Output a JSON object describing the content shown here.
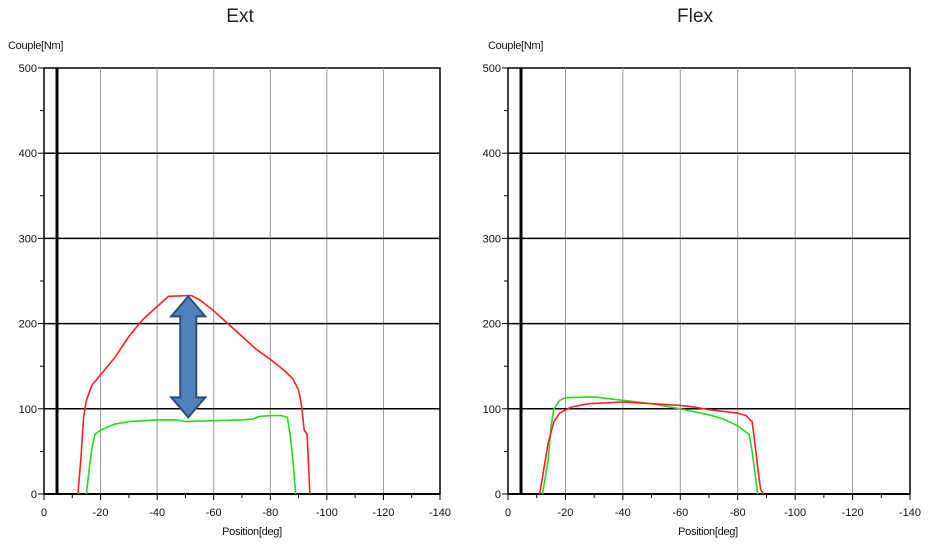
{
  "chart_data": [
    {
      "type": "line",
      "title": "Ext",
      "ylabel": "Couple[Nm]",
      "xlabel": "Position[deg]",
      "xlim": [
        0,
        -140
      ],
      "ylim": [
        0,
        500
      ],
      "x_ticks": [
        0,
        -20,
        -40,
        -60,
        -80,
        -100,
        -120,
        -140
      ],
      "y_ticks": [
        0,
        100,
        200,
        300,
        400,
        500
      ],
      "grid": true,
      "colors": {
        "red": "#ff2020",
        "green": "#22dd22",
        "arrow": "#4f81bd"
      },
      "annotation": {
        "type": "double-arrow",
        "x": -51,
        "y_from": 90,
        "y_to": 232
      },
      "series": [
        {
          "color": "red",
          "points": [
            [
              -12,
              0
            ],
            [
              -13,
              40
            ],
            [
              -14,
              90
            ],
            [
              -15,
              110
            ],
            [
              -17,
              128
            ],
            [
              -20,
              140
            ],
            [
              -25,
              160
            ],
            [
              -30,
              185
            ],
            [
              -35,
              205
            ],
            [
              -40,
              220
            ],
            [
              -44,
              232
            ],
            [
              -52,
              233
            ],
            [
              -55,
              228
            ],
            [
              -60,
              215
            ],
            [
              -65,
              200
            ],
            [
              -70,
              185
            ],
            [
              -75,
              170
            ],
            [
              -80,
              158
            ],
            [
              -85,
              145
            ],
            [
              -88,
              135
            ],
            [
              -90,
              122
            ],
            [
              -91,
              105
            ],
            [
              -92,
              75
            ],
            [
              -93,
              70
            ],
            [
              -94,
              0
            ]
          ]
        },
        {
          "color": "green",
          "points": [
            [
              -15,
              0
            ],
            [
              -16,
              30
            ],
            [
              -17,
              55
            ],
            [
              -18,
              70
            ],
            [
              -20,
              75
            ],
            [
              -25,
              82
            ],
            [
              -30,
              85
            ],
            [
              -40,
              87
            ],
            [
              -47,
              87
            ],
            [
              -50,
              85
            ],
            [
              -60,
              86
            ],
            [
              -70,
              87
            ],
            [
              -74,
              88
            ],
            [
              -76,
              91
            ],
            [
              -80,
              92
            ],
            [
              -84,
              92
            ],
            [
              -86,
              90
            ],
            [
              -87,
              70
            ],
            [
              -88,
              40
            ],
            [
              -89,
              0
            ]
          ]
        }
      ]
    },
    {
      "type": "line",
      "title": "Flex",
      "ylabel": "Couple[Nm]",
      "xlabel": "Position[deg]",
      "xlim": [
        0,
        -140
      ],
      "ylim": [
        0,
        500
      ],
      "x_ticks": [
        0,
        -20,
        -40,
        -60,
        -80,
        -100,
        -120,
        -140
      ],
      "y_ticks": [
        0,
        100,
        200,
        300,
        400,
        500
      ],
      "grid": true,
      "colors": {
        "red": "#ff2020",
        "green": "#22dd22"
      },
      "series": [
        {
          "color": "green",
          "points": [
            [
              -12,
              0
            ],
            [
              -14,
              40
            ],
            [
              -15,
              80
            ],
            [
              -16,
              100
            ],
            [
              -18,
              110
            ],
            [
              -20,
              113
            ],
            [
              -30,
              114
            ],
            [
              -40,
              110
            ],
            [
              -50,
              106
            ],
            [
              -60,
              100
            ],
            [
              -70,
              93
            ],
            [
              -75,
              88
            ],
            [
              -80,
              80
            ],
            [
              -82,
              75
            ],
            [
              -84,
              70
            ],
            [
              -85,
              50
            ],
            [
              -86,
              25
            ],
            [
              -87,
              0
            ]
          ]
        },
        {
          "color": "red",
          "points": [
            [
              -11,
              0
            ],
            [
              -12,
              20
            ],
            [
              -14,
              60
            ],
            [
              -16,
              85
            ],
            [
              -18,
              95
            ],
            [
              -22,
              102
            ],
            [
              -28,
              106
            ],
            [
              -40,
              108
            ],
            [
              -50,
              106
            ],
            [
              -60,
              104
            ],
            [
              -65,
              102
            ],
            [
              -70,
              99
            ],
            [
              -75,
              97
            ],
            [
              -80,
              95
            ],
            [
              -83,
              92
            ],
            [
              -84,
              88
            ],
            [
              -85,
              85
            ],
            [
              -86,
              60
            ],
            [
              -87,
              30
            ],
            [
              -88,
              5
            ],
            [
              -89,
              0
            ]
          ]
        }
      ]
    }
  ]
}
